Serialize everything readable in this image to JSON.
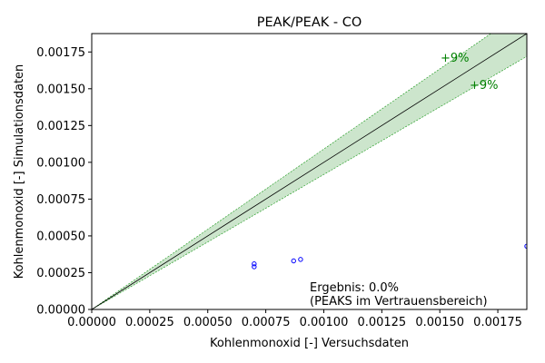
{
  "chart_data": {
    "type": "scatter",
    "title": "PEAK/PEAK - CO",
    "xlabel": "Kohlenmonoxid [-] Versuchsdaten",
    "ylabel": "Kohlenmonoxid [-] Simulationsdaten",
    "xlim": [
      0,
      0.001875
    ],
    "ylim": [
      0,
      0.001875
    ],
    "xticks": [
      "0.00000",
      "0.00025",
      "0.00050",
      "0.00075",
      "0.00100",
      "0.00125",
      "0.00150",
      "0.00175"
    ],
    "yticks": [
      "0.00000",
      "0.00025",
      "0.00050",
      "0.00075",
      "0.00100",
      "0.00125",
      "0.00150",
      "0.00175"
    ],
    "tick_values": [
      0,
      0.00025,
      0.0005,
      0.00075,
      0.001,
      0.00125,
      0.0015,
      0.00175
    ],
    "band_percent": 9,
    "band_labels": [
      "+9%",
      "+9%"
    ],
    "points": [
      {
        "x": 0.0007,
        "y": 0.00031
      },
      {
        "x": 0.0007,
        "y": 0.00029
      },
      {
        "x": 0.00087,
        "y": 0.00033
      },
      {
        "x": 0.0009,
        "y": 0.00034
      },
      {
        "x": 0.001875,
        "y": 0.00043
      }
    ],
    "annotation": [
      "Ergebnis: 0.0%",
      "(PEAKS im Vertrauensbereich)"
    ],
    "colors": {
      "band_fill": "#cce5cc",
      "band_edge": "#2ca02c",
      "band_text": "#008000",
      "points": "#0000ff",
      "diagonal": "#000000"
    },
    "grid": false,
    "legend": "none"
  }
}
